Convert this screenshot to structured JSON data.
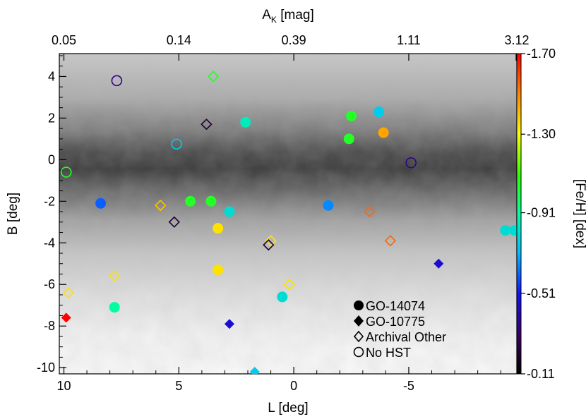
{
  "chart_data": {
    "type": "scatter",
    "title": "",
    "xlabel": "L [deg]",
    "ylabel": "B [deg]",
    "top_xlabel_main": "A",
    "top_xlabel_sub": "K",
    "top_xlabel_rest": " [mag]",
    "xlim": [
      10.2,
      -9.7
    ],
    "ylim": [
      -10.3,
      5.1
    ],
    "x_ticks": [
      10,
      5,
      0,
      -5
    ],
    "x_tick_labels": [
      "10",
      "5",
      "0",
      "-5"
    ],
    "y_ticks": [
      4,
      2,
      0,
      -2,
      -4,
      -6,
      -8,
      -10
    ],
    "y_tick_labels": [
      "4",
      "2",
      "0",
      "-2",
      "-4",
      "-6",
      "-8",
      "-10"
    ],
    "top_ticks": [
      10,
      5,
      0,
      -5,
      -9.7
    ],
    "top_tick_labels": [
      "0.05",
      "0.14",
      "0.39",
      "1.11",
      "3.12"
    ],
    "colorbar": {
      "label": "[Fe/H] [dex]",
      "range": [
        -1.7,
        -0.11
      ],
      "tick_values": [
        -0.11,
        -0.51,
        -0.91,
        -1.3,
        -1.7
      ],
      "tick_labels": [
        "-0.11",
        "-0.51",
        "-0.91",
        "-1.30",
        "-1.70"
      ]
    },
    "background": "grayscale extinction map (A_K), dark band along B = 0",
    "legend": {
      "placement": "bottom-right",
      "entries": [
        {
          "marker": "filled-circle",
          "label": "GO-14074"
        },
        {
          "marker": "filled-diamond",
          "label": "GO-10775"
        },
        {
          "marker": "open-diamond",
          "label": "Archival Other"
        },
        {
          "marker": "open-circle",
          "label": "No HST"
        }
      ]
    },
    "series": [
      {
        "name": "GO-14074",
        "marker": "filled-circle",
        "points": [
          {
            "l": 8.4,
            "b": -2.1,
            "feh": -0.6
          },
          {
            "l": 4.5,
            "b": -2.0,
            "feh": -1.05
          },
          {
            "l": 3.6,
            "b": -2.0,
            "feh": -1.05
          },
          {
            "l": 2.8,
            "b": -2.5,
            "feh": -0.8
          },
          {
            "l": 3.3,
            "b": -3.3,
            "feh": -1.35
          },
          {
            "l": 3.3,
            "b": -5.3,
            "feh": -1.35
          },
          {
            "l": 2.1,
            "b": 1.8,
            "feh": -0.85
          },
          {
            "l": 0.5,
            "b": -6.6,
            "feh": -0.8
          },
          {
            "l": 7.8,
            "b": -7.1,
            "feh": -0.9
          },
          {
            "l": -1.5,
            "b": -2.2,
            "feh": -0.65
          },
          {
            "l": -2.5,
            "b": 2.1,
            "feh": -1.05
          },
          {
            "l": -2.4,
            "b": 1.0,
            "feh": -1.05
          },
          {
            "l": -3.7,
            "b": 2.3,
            "feh": -0.75
          },
          {
            "l": -3.9,
            "b": 1.3,
            "feh": -1.45
          },
          {
            "l": -9.2,
            "b": -3.4,
            "feh": -0.8
          },
          {
            "l": -9.6,
            "b": -3.4,
            "feh": -0.8
          }
        ]
      },
      {
        "name": "GO-10775",
        "marker": "filled-diamond",
        "points": [
          {
            "l": 9.9,
            "b": -7.6,
            "feh": -1.7
          },
          {
            "l": 2.8,
            "b": -7.9,
            "feh": -0.45
          },
          {
            "l": 1.7,
            "b": -10.2,
            "feh": -0.75
          },
          {
            "l": -6.3,
            "b": -5.0,
            "feh": -0.45
          }
        ]
      },
      {
        "name": "Archival Other",
        "marker": "open-diamond",
        "points": [
          {
            "l": 3.5,
            "b": 4.0,
            "feh": -1.05
          },
          {
            "l": 3.8,
            "b": 1.7,
            "feh": -0.2
          },
          {
            "l": 5.8,
            "b": -2.2,
            "feh": -1.4
          },
          {
            "l": 5.2,
            "b": -3.0,
            "feh": -0.2
          },
          {
            "l": 1.0,
            "b": -3.9,
            "feh": -1.35
          },
          {
            "l": 1.1,
            "b": -4.1,
            "feh": -0.2
          },
          {
            "l": 7.8,
            "b": -5.6,
            "feh": -1.35
          },
          {
            "l": 9.8,
            "b": -6.4,
            "feh": -1.35
          },
          {
            "l": 0.2,
            "b": -6.0,
            "feh": -1.35
          },
          {
            "l": -3.3,
            "b": -2.5,
            "feh": -1.55
          },
          {
            "l": -4.2,
            "b": -3.9,
            "feh": -1.55
          }
        ]
      },
      {
        "name": "No HST",
        "marker": "open-circle",
        "points": [
          {
            "l": 7.7,
            "b": 3.8,
            "feh": -0.35
          },
          {
            "l": 5.1,
            "b": 0.75,
            "feh": -0.75
          },
          {
            "l": 9.9,
            "b": -0.6,
            "feh": -1.05
          },
          {
            "l": -5.1,
            "b": -0.15,
            "feh": -0.35
          }
        ]
      }
    ]
  }
}
